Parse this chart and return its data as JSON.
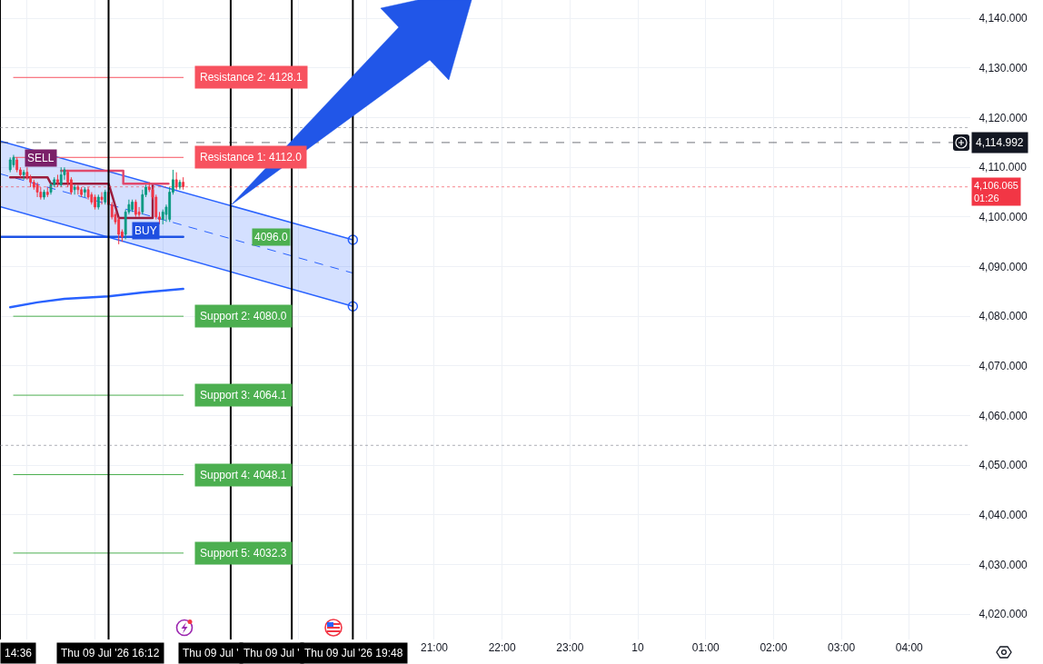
{
  "chart_data": {
    "type": "candlestick",
    "x": [
      "2026-07-09T14:45",
      "2026-07-09T14:48",
      "2026-07-09T14:51",
      "2026-07-09T14:54",
      "2026-07-09T14:57",
      "2026-07-09T15:00",
      "2026-07-09T15:03",
      "2026-07-09T15:06",
      "2026-07-09T15:09",
      "2026-07-09T15:12",
      "2026-07-09T15:15",
      "2026-07-09T15:18",
      "2026-07-09T15:21",
      "2026-07-09T15:24",
      "2026-07-09T15:27",
      "2026-07-09T15:30",
      "2026-07-09T15:33",
      "2026-07-09T15:36",
      "2026-07-09T15:39",
      "2026-07-09T15:42",
      "2026-07-09T15:45",
      "2026-07-09T15:48",
      "2026-07-09T15:51",
      "2026-07-09T15:54",
      "2026-07-09T15:57",
      "2026-07-09T16:00",
      "2026-07-09T16:03",
      "2026-07-09T16:06",
      "2026-07-09T16:09",
      "2026-07-09T16:12",
      "2026-07-09T16:15",
      "2026-07-09T16:18",
      "2026-07-09T16:21",
      "2026-07-09T16:24",
      "2026-07-09T16:27",
      "2026-07-09T16:30",
      "2026-07-09T16:33",
      "2026-07-09T16:36",
      "2026-07-09T16:39",
      "2026-07-09T16:42",
      "2026-07-09T16:45",
      "2026-07-09T16:48",
      "2026-07-09T16:51",
      "2026-07-09T16:54",
      "2026-07-09T16:57",
      "2026-07-09T17:00",
      "2026-07-09T17:03",
      "2026-07-09T17:06",
      "2026-07-09T17:09",
      "2026-07-09T17:12",
      "2026-07-09T17:15",
      "2026-07-09T17:18"
    ],
    "ohlc": [
      [
        4109.5,
        4112,
        4109,
        4111.5
      ],
      [
        4110.5,
        4112.5,
        4110,
        4112
      ],
      [
        4111.5,
        4112,
        4109,
        4109.5
      ],
      [
        4109.5,
        4110,
        4108,
        4108.5
      ],
      [
        4108.5,
        4109.5,
        4107.5,
        4109
      ],
      [
        4109,
        4110,
        4107.5,
        4108
      ],
      [
        4108,
        4108.5,
        4106,
        4107
      ],
      [
        4107,
        4107.5,
        4105.5,
        4106
      ],
      [
        4106.5,
        4107,
        4104,
        4105
      ],
      [
        4105,
        4106,
        4103.5,
        4104
      ],
      [
        4104,
        4105.5,
        4103.5,
        4105
      ],
      [
        4105,
        4106,
        4104,
        4104.5
      ],
      [
        4105,
        4107,
        4104.5,
        4106.5
      ],
      [
        4106.5,
        4108,
        4106,
        4107.5
      ],
      [
        4107.5,
        4108.5,
        4106,
        4107
      ],
      [
        4106.5,
        4110,
        4106,
        4108.5
      ],
      [
        4108.5,
        4110,
        4107.5,
        4109.5
      ],
      [
        4109,
        4109.5,
        4106,
        4107
      ],
      [
        4107.5,
        4108,
        4104.5,
        4105
      ],
      [
        4105.5,
        4106.5,
        4104.5,
        4106
      ],
      [
        4106,
        4106.5,
        4104.5,
        4105.5
      ],
      [
        4105.5,
        4106,
        4104,
        4104.5
      ],
      [
        4105,
        4106,
        4104,
        4105.5
      ],
      [
        4105.5,
        4106,
        4103.5,
        4104
      ],
      [
        4104.5,
        4105,
        4102.5,
        4103
      ],
      [
        4104,
        4104.5,
        4101.5,
        4102
      ],
      [
        4102,
        4104.5,
        4101.5,
        4104
      ],
      [
        4104,
        4105,
        4102.5,
        4103.5
      ],
      [
        4103,
        4105.5,
        4102.5,
        4105
      ],
      [
        4105,
        4105.5,
        4102,
        4102.5
      ],
      [
        4102.5,
        4103,
        4099.5,
        4100
      ],
      [
        4100.5,
        4101,
        4098.5,
        4099
      ],
      [
        4099.5,
        4100,
        4094.5,
        4096.5
      ],
      [
        4097,
        4097.5,
        4095,
        4096
      ],
      [
        4096.5,
        4101.5,
        4095.5,
        4101
      ],
      [
        4101,
        4103.5,
        4100.5,
        4102.5
      ],
      [
        4101.5,
        4103.5,
        4101,
        4103
      ],
      [
        4103,
        4103.5,
        4100,
        4100.5
      ],
      [
        4101,
        4102,
        4100,
        4100.5
      ],
      [
        4101,
        4105.5,
        4100.5,
        4104.5
      ],
      [
        4104.5,
        4106.5,
        4104,
        4106
      ],
      [
        4106,
        4107,
        4105,
        4105.5
      ],
      [
        4105.5,
        4106,
        4103.5,
        4104
      ],
      [
        4104,
        4104.5,
        4099.5,
        4100
      ],
      [
        4100,
        4101,
        4098.5,
        4099.5
      ],
      [
        4099.5,
        4101.5,
        4098.5,
        4101
      ],
      [
        4100.5,
        4102.5,
        4099,
        4102
      ],
      [
        4099.5,
        4106,
        4099,
        4105
      ],
      [
        4105,
        4109.5,
        4104.5,
        4107.5
      ],
      [
        4107.5,
        4109,
        4105.5,
        4106
      ],
      [
        4106,
        4107.5,
        4105.5,
        4107
      ],
      [
        4107,
        4108,
        4105.5,
        4106.1
      ]
    ],
    "xlim": [
      "2026-07-09T14:36",
      "2026-07-10T04:54"
    ],
    "xticks": [
      {
        "value": "2026-07-09T15:00",
        "label": null
      },
      {
        "value": "2026-07-09T16:00",
        "label": null
      },
      {
        "value": "2026-07-09T17:00",
        "label": null
      },
      {
        "value": "2026-07-09T18:00",
        "label": null
      },
      {
        "value": "2026-07-09T19:00",
        "label": null
      },
      {
        "value": "2026-07-09T20:00",
        "label": null
      },
      {
        "value": "2026-07-09T21:00",
        "label": "21:00"
      },
      {
        "value": "2026-07-09T22:00",
        "label": "22:00"
      },
      {
        "value": "2026-07-09T23:00",
        "label": "23:00"
      },
      {
        "value": "2026-07-10T00:00",
        "label": "10"
      },
      {
        "value": "2026-07-10T01:00",
        "label": "01:00"
      },
      {
        "value": "2026-07-10T02:00",
        "label": "02:00"
      },
      {
        "value": "2026-07-10T03:00",
        "label": "03:00"
      },
      {
        "value": "2026-07-10T04:00",
        "label": "04:00"
      }
    ],
    "ylim": [
      4014.9,
      4143.7
    ],
    "yticks": [
      {
        "value": 4020,
        "label": "4,020.000"
      },
      {
        "value": 4030,
        "label": "4,030.000"
      },
      {
        "value": 4040,
        "label": "4,040.000"
      },
      {
        "value": 4050,
        "label": "4,050.000"
      },
      {
        "value": 4060,
        "label": "4,060.000"
      },
      {
        "value": 4070,
        "label": "4,070.000"
      },
      {
        "value": 4080,
        "label": "4,080.000"
      },
      {
        "value": 4090,
        "label": "4,090.000"
      },
      {
        "value": 4100,
        "label": "4,100.000"
      },
      {
        "value": 4110,
        "label": "4,110.000"
      },
      {
        "value": 4120,
        "label": "4,120.000"
      },
      {
        "value": 4130,
        "label": "4,130.000"
      },
      {
        "value": 4140,
        "label": "4,140.000"
      }
    ],
    "grid": true,
    "series": [
      {
        "type": "line",
        "color": "#2962ff",
        "line_style": "dashed",
        "x": [
          "2026-07-09T14:36",
          "2026-07-09T19:48"
        ],
        "values": [
          4108.7,
          4088.7
        ],
        "lower": [
          4102.1,
          4082.0
        ],
        "upper": [
          4115.3,
          4095.4
        ]
      },
      {
        "type": "line",
        "color": "#2962ff",
        "x": [
          "2026-07-09T14:45",
          "2026-07-09T15:09",
          "2026-07-09T15:33",
          "2026-07-09T16:12",
          "2026-07-09T16:42",
          "2026-07-09T17:18"
        ],
        "values": [
          4081.8,
          4082.8,
          4083.5,
          4084.0,
          4084.8,
          4085.5
        ]
      },
      {
        "type": "line",
        "color": "#1e53e5",
        "x": [
          "2026-07-09T14:36",
          "2026-07-09T17:18"
        ],
        "values": [
          4096.0,
          4096.0
        ]
      },
      {
        "type": "line",
        "color": "#9c1c3c",
        "x": [
          "2026-07-09T14:45",
          "2026-07-09T15:18",
          "2026-07-09T15:21",
          "2026-07-09T16:12",
          "2026-07-09T16:15",
          "2026-07-09T16:21",
          "2026-07-09T16:51",
          "2026-07-09T16:51"
        ],
        "values": [
          4108.0,
          4108.0,
          4106.7,
          4106.7,
          4104.5,
          4099.8,
          4099.8,
          4106.7
        ]
      },
      {
        "type": "line",
        "color": "#e04a6e",
        "x": [
          "2026-07-09T15:30",
          "2026-07-09T16:25",
          "2026-07-09T16:25",
          "2026-07-09T17:05"
        ],
        "values": [
          4109.3,
          4109.3,
          4106.7,
          4106.7
        ]
      },
      {
        "type": "line",
        "name": "Resistance 2: 4128.1",
        "color": "#f7525f",
        "x": [
          "2026-07-09T14:48",
          "2026-07-09T17:18"
        ],
        "values": [
          4128.1,
          4128.1
        ]
      },
      {
        "type": "line",
        "name": "Resistance 1: 4112.0",
        "color": "#f7525f",
        "x": [
          "2026-07-09T14:48",
          "2026-07-09T17:18"
        ],
        "values": [
          4112.0,
          4112.0
        ]
      },
      {
        "type": "line",
        "name": "Support 2: 4080.0",
        "color": "#4caf50",
        "x": [
          "2026-07-09T14:48",
          "2026-07-09T17:18"
        ],
        "values": [
          4080.0,
          4080.0
        ]
      },
      {
        "type": "line",
        "name": "Support 3: 4064.1",
        "color": "#4caf50",
        "x": [
          "2026-07-09T14:48",
          "2026-07-09T17:18"
        ],
        "values": [
          4064.1,
          4064.1
        ]
      },
      {
        "type": "line",
        "name": "Support 4: 4048.1",
        "color": "#4caf50",
        "x": [
          "2026-07-09T14:48",
          "2026-07-09T17:18"
        ],
        "values": [
          4048.1,
          4048.1
        ]
      },
      {
        "type": "line",
        "name": "Support 5: 4032.3",
        "color": "#4caf50",
        "x": [
          "2026-07-09T14:48",
          "2026-07-09T17:18"
        ],
        "values": [
          4032.3,
          4032.3
        ]
      }
    ],
    "ref_lines": [
      {
        "axis": "x",
        "value": "2026-07-09T14:36",
        "label": "14:36",
        "color": "#000000"
      },
      {
        "axis": "x",
        "value": "2026-07-09T16:12",
        "label": "Thu 09 Jul '26 16:12",
        "color": "#000000"
      },
      {
        "axis": "x",
        "value": "2026-07-09T18:00",
        "label": "Thu 09 Jul '",
        "color": "#000000"
      },
      {
        "axis": "x",
        "value": "2026-07-09T18:54",
        "label": "Thu 09 Jul '",
        "color": "#000000"
      },
      {
        "axis": "x",
        "value": "2026-07-09T19:48",
        "label": "Thu 09 Jul '26 19:48",
        "color": "#000000"
      },
      {
        "axis": "y",
        "value": 4118.0,
        "color": "#787b86",
        "line_style": "dotted"
      },
      {
        "axis": "y",
        "value": 4054.0,
        "color": "#787b86",
        "line_style": "dotted"
      },
      {
        "axis": "y",
        "value": 4114.992,
        "label": "4,114.992",
        "color": "#131722",
        "line_style": "dashed"
      },
      {
        "axis": "y",
        "value": 4106.065,
        "label": "4,106.065\n01:26",
        "color": "#f23645",
        "line_style": "dotted"
      }
    ],
    "annotations": [
      {
        "text": "SELL",
        "x": "2026-07-09T15:12",
        "y": 4111.8
      },
      {
        "text": "BUY",
        "x": "2026-07-09T16:45",
        "y": 4097.2
      },
      {
        "text": "4096.0",
        "x": "2026-07-09T18:36",
        "y": 4096.0
      }
    ]
  }
}
